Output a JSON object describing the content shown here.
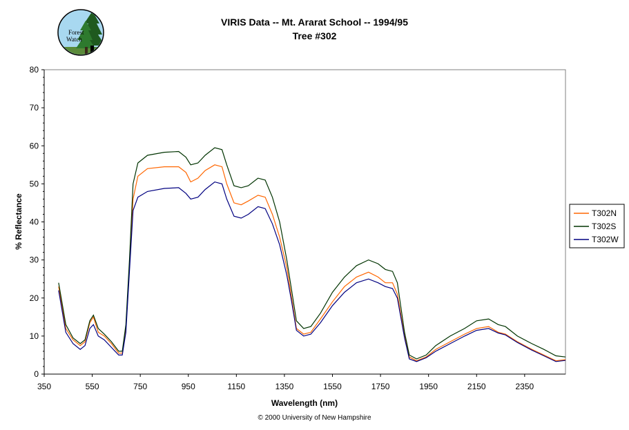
{
  "logo": {
    "line1": "Forest",
    "line2": "Watch"
  },
  "copyright": "© 2000 University of New Hampshire",
  "colors": {
    "T302N": "#ff6600",
    "T302S": "#003300",
    "T302W": "#000080"
  },
  "chart_data": {
    "type": "line",
    "title": "VIRIS Data -- Mt. Ararat School -- 1994/95",
    "subtitle": "Tree #302",
    "xlabel": "Wavelength (nm)",
    "ylabel": "% Reflectance",
    "xlim": [
      350,
      2520
    ],
    "ylim": [
      0,
      80
    ],
    "xticks": [
      350,
      550,
      750,
      950,
      1150,
      1350,
      1550,
      1750,
      1950,
      2150,
      2350
    ],
    "yticks": [
      0,
      10,
      20,
      30,
      40,
      50,
      60,
      70,
      80
    ],
    "legend_position": "right",
    "grid": false,
    "series": [
      {
        "name": "T302N",
        "points": [
          [
            410,
            23
          ],
          [
            440,
            12
          ],
          [
            470,
            9
          ],
          [
            500,
            7.5
          ],
          [
            520,
            8.5
          ],
          [
            540,
            13.5
          ],
          [
            555,
            15
          ],
          [
            575,
            11
          ],
          [
            600,
            10
          ],
          [
            630,
            8
          ],
          [
            660,
            5.5
          ],
          [
            675,
            5.5
          ],
          [
            690,
            12
          ],
          [
            705,
            28
          ],
          [
            720,
            46
          ],
          [
            740,
            52
          ],
          [
            780,
            54
          ],
          [
            850,
            54.5
          ],
          [
            910,
            54.5
          ],
          [
            940,
            53
          ],
          [
            960,
            50.5
          ],
          [
            990,
            51.5
          ],
          [
            1020,
            53.5
          ],
          [
            1060,
            55
          ],
          [
            1090,
            54.5
          ],
          [
            1110,
            50
          ],
          [
            1140,
            45
          ],
          [
            1170,
            44.5
          ],
          [
            1200,
            45.5
          ],
          [
            1240,
            47
          ],
          [
            1270,
            46.5
          ],
          [
            1300,
            42
          ],
          [
            1330,
            36
          ],
          [
            1360,
            28
          ],
          [
            1380,
            20
          ],
          [
            1400,
            12
          ],
          [
            1430,
            10.5
          ],
          [
            1460,
            11
          ],
          [
            1500,
            14.5
          ],
          [
            1550,
            19
          ],
          [
            1600,
            23
          ],
          [
            1650,
            25.5
          ],
          [
            1700,
            26.8
          ],
          [
            1740,
            25.5
          ],
          [
            1770,
            24
          ],
          [
            1800,
            24
          ],
          [
            1820,
            21
          ],
          [
            1850,
            10
          ],
          [
            1870,
            4.5
          ],
          [
            1900,
            3.5
          ],
          [
            1940,
            4.5
          ],
          [
            1980,
            6.5
          ],
          [
            2040,
            8.5
          ],
          [
            2100,
            10.5
          ],
          [
            2150,
            12
          ],
          [
            2200,
            12.5
          ],
          [
            2240,
            11
          ],
          [
            2270,
            10.5
          ],
          [
            2320,
            8.5
          ],
          [
            2380,
            6.5
          ],
          [
            2430,
            5
          ],
          [
            2480,
            3.5
          ],
          [
            2520,
            3.8
          ]
        ]
      },
      {
        "name": "T302S",
        "points": [
          [
            410,
            24
          ],
          [
            440,
            13
          ],
          [
            470,
            9.5
          ],
          [
            500,
            8
          ],
          [
            520,
            9
          ],
          [
            540,
            14
          ],
          [
            555,
            15.5
          ],
          [
            575,
            12
          ],
          [
            600,
            10.5
          ],
          [
            630,
            8.5
          ],
          [
            660,
            6
          ],
          [
            675,
            6
          ],
          [
            690,
            13
          ],
          [
            705,
            30
          ],
          [
            720,
            50
          ],
          [
            740,
            55.5
          ],
          [
            780,
            57.5
          ],
          [
            850,
            58.3
          ],
          [
            910,
            58.5
          ],
          [
            940,
            57
          ],
          [
            960,
            55
          ],
          [
            990,
            55.5
          ],
          [
            1020,
            57.5
          ],
          [
            1060,
            59.5
          ],
          [
            1090,
            59
          ],
          [
            1110,
            55
          ],
          [
            1140,
            49.5
          ],
          [
            1170,
            49
          ],
          [
            1200,
            49.5
          ],
          [
            1240,
            51.5
          ],
          [
            1270,
            51
          ],
          [
            1300,
            46.5
          ],
          [
            1330,
            40
          ],
          [
            1360,
            30
          ],
          [
            1380,
            22
          ],
          [
            1400,
            14
          ],
          [
            1430,
            12
          ],
          [
            1460,
            12.5
          ],
          [
            1500,
            16
          ],
          [
            1550,
            21.5
          ],
          [
            1600,
            25.5
          ],
          [
            1650,
            28.5
          ],
          [
            1700,
            30
          ],
          [
            1740,
            29
          ],
          [
            1770,
            27.5
          ],
          [
            1800,
            27
          ],
          [
            1820,
            24
          ],
          [
            1850,
            11
          ],
          [
            1870,
            5
          ],
          [
            1900,
            4
          ],
          [
            1940,
            5
          ],
          [
            1980,
            7.5
          ],
          [
            2040,
            10
          ],
          [
            2100,
            12
          ],
          [
            2150,
            14
          ],
          [
            2200,
            14.5
          ],
          [
            2240,
            13
          ],
          [
            2270,
            12.5
          ],
          [
            2320,
            10
          ],
          [
            2380,
            8
          ],
          [
            2430,
            6.5
          ],
          [
            2480,
            4.8
          ],
          [
            2520,
            4.5
          ]
        ]
      },
      {
        "name": "T302W",
        "points": [
          [
            410,
            22
          ],
          [
            440,
            11
          ],
          [
            470,
            8
          ],
          [
            500,
            6.5
          ],
          [
            520,
            7.5
          ],
          [
            540,
            12
          ],
          [
            555,
            13
          ],
          [
            575,
            10
          ],
          [
            600,
            9
          ],
          [
            630,
            7
          ],
          [
            660,
            5
          ],
          [
            675,
            5
          ],
          [
            690,
            11
          ],
          [
            705,
            27
          ],
          [
            720,
            43
          ],
          [
            740,
            46.5
          ],
          [
            780,
            48
          ],
          [
            850,
            48.8
          ],
          [
            910,
            49
          ],
          [
            940,
            47.5
          ],
          [
            960,
            46
          ],
          [
            990,
            46.5
          ],
          [
            1020,
            48.5
          ],
          [
            1060,
            50.5
          ],
          [
            1090,
            50
          ],
          [
            1110,
            46
          ],
          [
            1140,
            41.5
          ],
          [
            1170,
            41
          ],
          [
            1200,
            42
          ],
          [
            1240,
            44
          ],
          [
            1270,
            43.5
          ],
          [
            1300,
            39.5
          ],
          [
            1330,
            34
          ],
          [
            1360,
            26
          ],
          [
            1380,
            19
          ],
          [
            1400,
            11.5
          ],
          [
            1430,
            10
          ],
          [
            1460,
            10.5
          ],
          [
            1500,
            13.5
          ],
          [
            1550,
            18
          ],
          [
            1600,
            21.5
          ],
          [
            1650,
            24
          ],
          [
            1700,
            25
          ],
          [
            1740,
            24
          ],
          [
            1770,
            23
          ],
          [
            1800,
            22.5
          ],
          [
            1820,
            20
          ],
          [
            1850,
            9.5
          ],
          [
            1870,
            4
          ],
          [
            1900,
            3.3
          ],
          [
            1940,
            4.3
          ],
          [
            1980,
            6
          ],
          [
            2040,
            8
          ],
          [
            2100,
            10
          ],
          [
            2150,
            11.5
          ],
          [
            2200,
            12
          ],
          [
            2240,
            10.8
          ],
          [
            2270,
            10.3
          ],
          [
            2320,
            8.3
          ],
          [
            2380,
            6.3
          ],
          [
            2430,
            4.8
          ],
          [
            2480,
            3.3
          ],
          [
            2520,
            3.6
          ]
        ]
      }
    ]
  }
}
